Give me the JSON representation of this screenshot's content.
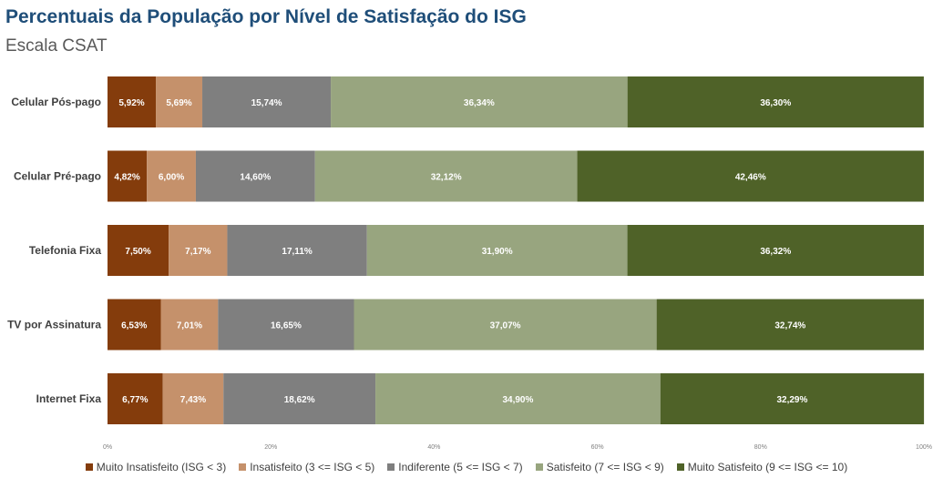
{
  "title": "Percentuais da População por Nível de Satisfação do ISG",
  "subtitle": "Escala CSAT",
  "chart_data": {
    "type": "bar",
    "orientation": "horizontal",
    "stacked": true,
    "categories": [
      "Celular Pós-pago",
      "Celular Pré-pago",
      "Telefonia Fixa",
      "TV por Assinatura",
      "Internet Fixa"
    ],
    "series": [
      {
        "name": "Muito Insatisfeito (ISG < 3)",
        "color": "#843c0c",
        "values": [
          5.92,
          4.82,
          7.5,
          6.53,
          6.77
        ],
        "labels": [
          "5,92%",
          "4,82%",
          "7,50%",
          "6,53%",
          "6,77%"
        ]
      },
      {
        "name": "Insatisfeito (3 <= ISG < 5)",
        "color": "#c5916b",
        "values": [
          5.69,
          6.0,
          7.17,
          7.01,
          7.43
        ],
        "labels": [
          "5,69%",
          "6,00%",
          "7,17%",
          "7,01%",
          "7,43%"
        ]
      },
      {
        "name": "Indiferente (5 <= ISG < 7)",
        "color": "#7f7f7f",
        "values": [
          15.74,
          14.6,
          17.11,
          16.65,
          18.62
        ],
        "labels": [
          "15,74%",
          "14,60%",
          "17,11%",
          "16,65%",
          "18,62%"
        ]
      },
      {
        "name": "Satisfeito (7 <= ISG < 9)",
        "color": "#98a57f",
        "values": [
          36.34,
          32.12,
          31.9,
          37.07,
          34.9
        ],
        "labels": [
          "36,34%",
          "32,12%",
          "31,90%",
          "37,07%",
          "34,90%"
        ]
      },
      {
        "name": "Muito Satisfeito (9 <= ISG <= 10)",
        "color": "#4f6228",
        "values": [
          36.3,
          42.46,
          36.32,
          32.74,
          32.29
        ],
        "labels": [
          "36,30%",
          "42,46%",
          "36,32%",
          "32,74%",
          "32,29%"
        ]
      }
    ],
    "xlim": [
      0,
      100
    ],
    "xticks": [
      0,
      20,
      40,
      60,
      80,
      100
    ],
    "xtick_labels": [
      "0%",
      "20%",
      "40%",
      "60%",
      "80%",
      "100%"
    ],
    "grid": false,
    "legend": "bottom"
  }
}
